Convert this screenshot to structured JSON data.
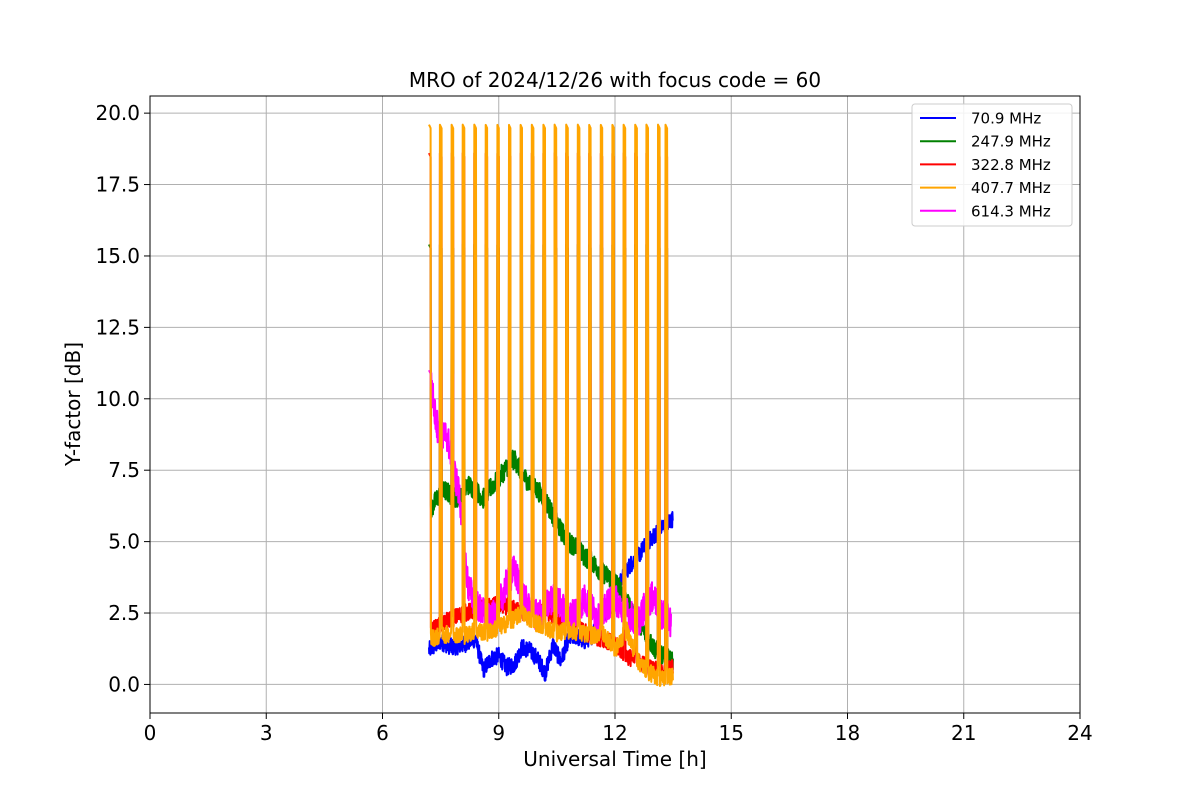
{
  "chart_data": {
    "type": "line",
    "title": "MRO of 2024/12/26 with focus code = 60",
    "xlabel": "Universal Time [h]",
    "ylabel": "Y-factor [dB]",
    "xlim": [
      0,
      24
    ],
    "ylim": [
      -1.0,
      20.6
    ],
    "xticks": [
      0,
      3,
      6,
      9,
      12,
      15,
      18,
      21,
      24
    ],
    "xtick_labels": [
      "0",
      "3",
      "6",
      "9",
      "12",
      "15",
      "18",
      "21",
      "24"
    ],
    "yticks": [
      0,
      2.5,
      5,
      7.5,
      10,
      12.5,
      15,
      17.5,
      20
    ],
    "ytick_labels": [
      "0.0",
      "2.5",
      "5.0",
      "7.5",
      "10.0",
      "12.5",
      "15.0",
      "17.5",
      "20.0"
    ],
    "grid": true,
    "legend_position": "top-right",
    "calibration_peaks": {
      "description_hidden": true,
      "x": [
        7.2,
        7.48,
        7.78,
        8.07,
        8.37,
        8.66,
        8.96,
        9.26,
        9.56,
        9.85,
        10.15,
        10.44,
        10.74,
        11.04,
        11.33,
        11.63,
        11.93,
        12.22,
        12.52,
        12.81,
        13.11,
        13.3
      ]
    },
    "series": [
      {
        "name": "70.9 MHz",
        "color": "#0000ff",
        "x": [
          7.2,
          7.5,
          7.8,
          8.1,
          8.4,
          8.6,
          8.8,
          9.0,
          9.2,
          9.4,
          9.6,
          9.8,
          10.0,
          10.2,
          10.4,
          10.6,
          10.8,
          11.0,
          11.2,
          11.4,
          11.6,
          11.8,
          12.0,
          12.2,
          12.4,
          12.6,
          12.8,
          13.0,
          13.2,
          13.5
        ],
        "values": [
          1.2,
          1.5,
          1.3,
          1.4,
          1.6,
          0.5,
          0.9,
          1.0,
          0.6,
          0.7,
          1.3,
          1.2,
          0.9,
          0.4,
          1.4,
          0.8,
          1.6,
          1.7,
          1.5,
          1.7,
          2.4,
          2.6,
          3.0,
          3.8,
          4.2,
          4.5,
          4.9,
          5.2,
          5.5,
          5.8
        ]
      },
      {
        "name": "247.9 MHz",
        "color": "#008000",
        "x": [
          7.2,
          7.4,
          7.6,
          7.8,
          8.0,
          8.2,
          8.4,
          8.6,
          8.8,
          9.0,
          9.2,
          9.4,
          9.6,
          9.8,
          10.0,
          10.2,
          10.4,
          10.6,
          10.8,
          11.0,
          11.2,
          11.4,
          11.6,
          11.8,
          12.0,
          12.2,
          12.4,
          12.6,
          12.8,
          13.0,
          13.2,
          13.5
        ],
        "values": [
          6.0,
          6.5,
          6.8,
          6.6,
          6.5,
          7.0,
          6.8,
          6.5,
          6.9,
          7.2,
          7.6,
          7.9,
          7.4,
          7.0,
          6.8,
          6.5,
          5.9,
          5.4,
          5.0,
          4.8,
          4.5,
          4.3,
          4.0,
          3.8,
          3.6,
          3.2,
          2.6,
          2.3,
          1.7,
          1.3,
          1.0,
          0.8
        ]
      },
      {
        "name": "322.8 MHz",
        "color": "#ff0000",
        "x": [
          7.2,
          7.5,
          7.8,
          8.1,
          8.4,
          8.7,
          9.0,
          9.3,
          9.6,
          9.9,
          10.2,
          10.5,
          10.8,
          11.1,
          11.4,
          11.7,
          12.0,
          12.3,
          12.6,
          12.9,
          13.2,
          13.5
        ],
        "values": [
          1.8,
          2.1,
          2.3,
          2.5,
          2.6,
          2.7,
          2.8,
          2.7,
          2.5,
          2.4,
          2.6,
          2.3,
          2.1,
          1.9,
          1.7,
          1.6,
          1.4,
          1.0,
          0.8,
          0.6,
          0.4,
          0.6
        ]
      },
      {
        "name": "407.7 MHz",
        "color": "#ffa500",
        "x": [
          7.2,
          7.5,
          7.8,
          8.1,
          8.4,
          8.7,
          9.0,
          9.3,
          9.6,
          9.9,
          10.2,
          10.5,
          10.8,
          11.1,
          11.4,
          11.7,
          12.0,
          12.3,
          12.6,
          12.9,
          13.2,
          13.5
        ],
        "values": [
          1.6,
          1.7,
          1.8,
          1.7,
          1.9,
          1.8,
          2.0,
          2.2,
          2.5,
          2.2,
          2.0,
          1.8,
          1.9,
          1.8,
          1.7,
          1.8,
          1.2,
          1.9,
          0.8,
          0.4,
          0.2,
          0.3
        ]
      },
      {
        "name": "614.3 MHz",
        "color": "#ff00ff",
        "x": [
          7.2,
          7.35,
          7.5,
          7.65,
          7.8,
          8.0,
          8.2,
          8.4,
          8.6,
          8.8,
          9.0,
          9.2,
          9.4,
          9.6,
          9.8,
          10.0,
          10.2,
          10.4,
          10.6,
          10.8,
          11.0,
          11.2,
          11.4,
          11.6,
          11.8,
          12.0,
          12.2,
          12.4,
          12.6,
          12.8,
          13.0,
          13.2,
          13.45
        ],
        "values": [
          11.2,
          9.5,
          8.5,
          8.8,
          7.8,
          6.5,
          3.5,
          2.8,
          2.5,
          2.2,
          2.8,
          3.5,
          4.0,
          3.2,
          2.6,
          2.4,
          2.7,
          3.0,
          2.8,
          2.3,
          2.6,
          3.0,
          2.7,
          2.2,
          2.8,
          3.0,
          2.6,
          2.4,
          2.2,
          2.8,
          3.1,
          2.5,
          2.2
        ]
      }
    ]
  }
}
